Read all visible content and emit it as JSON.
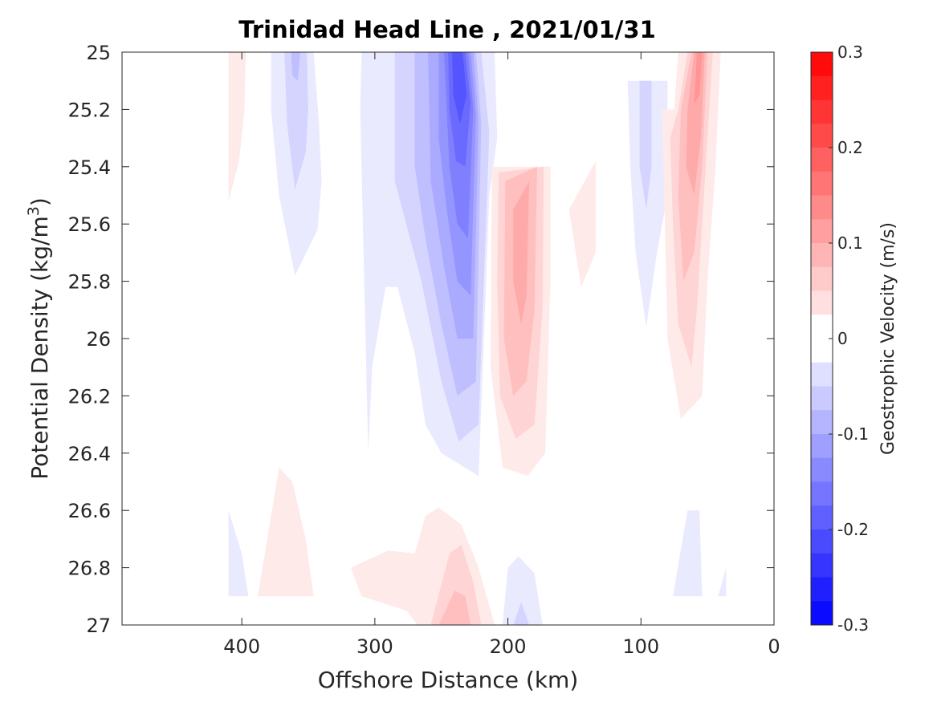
{
  "chart_data": {
    "type": "contour",
    "title": "Trinidad Head Line , 2021/01/31",
    "xlabel": "Offshore Distance (km)",
    "ylabel_main": "Potential Density (kg/m",
    "ylabel_sup": "3",
    "ylabel_end": ")",
    "xlim": [
      490,
      0
    ],
    "ylim": [
      25,
      27
    ],
    "x_reversed": true,
    "y_reversed": true,
    "x_ticks": [
      400,
      300,
      200,
      100,
      0
    ],
    "x_tick_labels": [
      "400",
      "300",
      "200",
      "100",
      "0"
    ],
    "y_ticks": [
      25,
      25.2,
      25.4,
      25.6,
      25.8,
      26,
      26.2,
      26.4,
      26.6,
      26.8,
      27
    ],
    "y_tick_labels": [
      "25",
      "25.2",
      "25.4",
      "25.6",
      "25.8",
      "26",
      "26.2",
      "26.4",
      "26.6",
      "26.8",
      "27"
    ],
    "colorbar": {
      "label": "Geostrophic Velocity (m/s)",
      "range": [
        -0.3,
        0.3
      ],
      "step": 0.025,
      "ticks": [
        0.3,
        0.2,
        0.1,
        0,
        -0.1,
        -0.2,
        -0.3
      ],
      "tick_labels": [
        "0.3",
        "0.2",
        "0.1",
        "0",
        "-0.1",
        "-0.2",
        "-0.3"
      ],
      "colormap": "blue-white-red",
      "low_color": "#0000ff",
      "high_color": "#ff0000"
    },
    "regions": [
      {
        "v": 0.025,
        "pts": [
          [
            410,
            25
          ],
          [
            397,
            25
          ],
          [
            398,
            25.2
          ],
          [
            402,
            25.38
          ],
          [
            410,
            25.52
          ]
        ]
      },
      {
        "v": -0.025,
        "pts": [
          [
            378,
            25
          ],
          [
            346,
            25
          ],
          [
            342,
            25.25
          ],
          [
            340,
            25.45
          ],
          [
            343,
            25.62
          ],
          [
            360,
            25.78
          ],
          [
            372,
            25.5
          ],
          [
            378,
            25.2
          ]
        ]
      },
      {
        "v": -0.05,
        "pts": [
          [
            368,
            25
          ],
          [
            351,
            25
          ],
          [
            350,
            25.2
          ],
          [
            352,
            25.35
          ],
          [
            360,
            25.48
          ],
          [
            366,
            25.25
          ]
        ]
      },
      {
        "v": -0.075,
        "pts": [
          [
            363,
            25
          ],
          [
            356,
            25
          ],
          [
            358,
            25.1
          ],
          [
            362,
            25.08
          ]
        ]
      },
      {
        "v": -0.025,
        "pts": [
          [
            310,
            25
          ],
          [
            210,
            25
          ],
          [
            208,
            25.3
          ],
          [
            214,
            25.5
          ],
          [
            218,
            26.0
          ],
          [
            222,
            26.48
          ],
          [
            250,
            26.4
          ],
          [
            262,
            26.3
          ],
          [
            270,
            26.05
          ],
          [
            283,
            25.82
          ],
          [
            292,
            25.82
          ],
          [
            302,
            26.1
          ],
          [
            305,
            26.4
          ],
          [
            308,
            25.8
          ],
          [
            311,
            25.2
          ]
        ]
      },
      {
        "v": -0.05,
        "pts": [
          [
            285,
            25
          ],
          [
            220,
            25
          ],
          [
            214,
            25.28
          ],
          [
            222,
            26.3
          ],
          [
            237,
            26.36
          ],
          [
            250,
            26.15
          ],
          [
            265,
            25.8
          ],
          [
            285,
            25.45
          ]
        ]
      },
      {
        "v": -0.075,
        "pts": [
          [
            270,
            25
          ],
          [
            224,
            25
          ],
          [
            220,
            25.25
          ],
          [
            224,
            26.15
          ],
          [
            238,
            26.2
          ],
          [
            250,
            25.95
          ],
          [
            262,
            25.65
          ],
          [
            270,
            25.4
          ]
        ]
      },
      {
        "v": -0.1,
        "pts": [
          [
            260,
            25
          ],
          [
            226,
            25
          ],
          [
            222,
            25.24
          ],
          [
            226,
            26.0
          ],
          [
            238,
            26.0
          ],
          [
            248,
            25.75
          ],
          [
            258,
            25.45
          ]
        ]
      },
      {
        "v": -0.125,
        "pts": [
          [
            252,
            25
          ],
          [
            228,
            25
          ],
          [
            224,
            25.22
          ],
          [
            228,
            25.85
          ],
          [
            238,
            25.8
          ],
          [
            246,
            25.55
          ],
          [
            252,
            25.3
          ]
        ]
      },
      {
        "v": -0.15,
        "pts": [
          [
            248,
            25
          ],
          [
            230,
            25
          ],
          [
            226,
            25.2
          ],
          [
            230,
            25.65
          ],
          [
            238,
            25.6
          ],
          [
            244,
            25.4
          ]
        ]
      },
      {
        "v": -0.175,
        "pts": [
          [
            245,
            25
          ],
          [
            232,
            25
          ],
          [
            228,
            25.18
          ],
          [
            232,
            25.4
          ],
          [
            239,
            25.38
          ],
          [
            244,
            25.2
          ]
        ]
      },
      {
        "v": -0.2,
        "pts": [
          [
            242,
            25
          ],
          [
            234,
            25
          ],
          [
            231,
            25.15
          ],
          [
            236,
            25.25
          ],
          [
            241,
            25.15
          ]
        ]
      },
      {
        "v": 0.025,
        "pts": [
          [
            212,
            25.4
          ],
          [
            168,
            25.4
          ],
          [
            168,
            25.8
          ],
          [
            172,
            26.4
          ],
          [
            185,
            26.48
          ],
          [
            204,
            26.45
          ],
          [
            213,
            26.1
          ]
        ]
      },
      {
        "v": 0.05,
        "pts": [
          [
            207,
            25.42
          ],
          [
            173,
            25.4
          ],
          [
            174,
            25.9
          ],
          [
            180,
            26.3
          ],
          [
            194,
            26.35
          ],
          [
            206,
            26.2
          ],
          [
            208,
            25.8
          ]
        ]
      },
      {
        "v": 0.075,
        "pts": [
          [
            202,
            25.45
          ],
          [
            178,
            25.4
          ],
          [
            180,
            25.9
          ],
          [
            186,
            26.15
          ],
          [
            196,
            26.2
          ],
          [
            203,
            26.0
          ]
        ]
      },
      {
        "v": 0.1,
        "pts": [
          [
            196,
            25.55
          ],
          [
            184,
            25.45
          ],
          [
            186,
            25.85
          ],
          [
            190,
            25.95
          ],
          [
            196,
            25.8
          ]
        ]
      },
      {
        "v": 0.025,
        "pts": [
          [
            134,
            25.38
          ],
          [
            154,
            25.55
          ],
          [
            145,
            25.82
          ],
          [
            134,
            25.7
          ]
        ]
      },
      {
        "v": -0.025,
        "pts": [
          [
            110,
            25.1
          ],
          [
            80,
            25.1
          ],
          [
            80,
            25.5
          ],
          [
            88,
            25.7
          ],
          [
            96,
            25.96
          ],
          [
            104,
            25.7
          ],
          [
            108,
            25.4
          ]
        ]
      },
      {
        "v": -0.05,
        "pts": [
          [
            101,
            25.1
          ],
          [
            92,
            25.1
          ],
          [
            92,
            25.4
          ],
          [
            96,
            25.55
          ],
          [
            101,
            25.4
          ]
        ]
      },
      {
        "v": 0.025,
        "pts": [
          [
            72,
            25
          ],
          [
            40,
            25
          ],
          [
            44,
            25.4
          ],
          [
            50,
            25.8
          ],
          [
            54,
            26.2
          ],
          [
            70,
            26.28
          ],
          [
            80,
            26.0
          ],
          [
            82,
            25.6
          ],
          [
            84,
            25.2
          ],
          [
            75,
            25.2
          ]
        ]
      },
      {
        "v": 0.05,
        "pts": [
          [
            65,
            25
          ],
          [
            46,
            25
          ],
          [
            50,
            25.3
          ],
          [
            54,
            25.6
          ],
          [
            58,
            25.9
          ],
          [
            62,
            26.1
          ],
          [
            72,
            25.95
          ],
          [
            76,
            25.6
          ],
          [
            78,
            25.3
          ],
          [
            72,
            25.2
          ]
        ]
      },
      {
        "v": 0.075,
        "pts": [
          [
            62,
            25
          ],
          [
            50,
            25
          ],
          [
            54,
            25.4
          ],
          [
            60,
            25.7
          ],
          [
            68,
            25.8
          ],
          [
            72,
            25.5
          ],
          [
            70,
            25.2
          ]
        ]
      },
      {
        "v": 0.1,
        "pts": [
          [
            60,
            25
          ],
          [
            52,
            25
          ],
          [
            55,
            25.3
          ],
          [
            60,
            25.5
          ],
          [
            66,
            25.4
          ],
          [
            65,
            25.2
          ]
        ]
      },
      {
        "v": 0.125,
        "pts": [
          [
            58,
            25
          ],
          [
            54,
            25
          ],
          [
            56,
            25.15
          ],
          [
            60,
            25.18
          ]
        ]
      },
      {
        "v": -0.025,
        "pts": [
          [
            410,
            26.6
          ],
          [
            410,
            26.9
          ],
          [
            395,
            26.9
          ],
          [
            400,
            26.75
          ]
        ]
      },
      {
        "v": 0.025,
        "pts": [
          [
            372,
            26.45
          ],
          [
            388,
            26.9
          ],
          [
            346,
            26.9
          ],
          [
            352,
            26.7
          ],
          [
            362,
            26.5
          ]
        ]
      },
      {
        "v": 0.025,
        "pts": [
          [
            310,
            26.9
          ],
          [
            318,
            26.8
          ],
          [
            290,
            26.74
          ],
          [
            270,
            26.75
          ],
          [
            262,
            26.62
          ],
          [
            252,
            26.59
          ],
          [
            235,
            26.65
          ],
          [
            222,
            26.8
          ],
          [
            210,
            27
          ],
          [
            268,
            27
          ],
          [
            276,
            26.95
          ]
        ]
      },
      {
        "v": 0.05,
        "pts": [
          [
            258,
            27
          ],
          [
            244,
            26.75
          ],
          [
            235,
            26.72
          ],
          [
            226,
            26.85
          ],
          [
            220,
            27
          ]
        ]
      },
      {
        "v": 0.075,
        "pts": [
          [
            252,
            27
          ],
          [
            240,
            26.88
          ],
          [
            232,
            26.9
          ],
          [
            228,
            27
          ]
        ]
      },
      {
        "v": -0.025,
        "pts": [
          [
            204,
            27
          ],
          [
            200,
            26.8
          ],
          [
            192,
            26.76
          ],
          [
            180,
            26.82
          ],
          [
            174,
            27
          ]
        ]
      },
      {
        "v": -0.05,
        "pts": [
          [
            196,
            27
          ],
          [
            190,
            26.92
          ],
          [
            184,
            27
          ]
        ]
      },
      {
        "v": -0.025,
        "pts": [
          [
            65,
            26.6
          ],
          [
            76,
            26.9
          ],
          [
            54,
            26.9
          ],
          [
            56,
            26.6
          ]
        ]
      },
      {
        "v": -0.025,
        "pts": [
          [
            42,
            26.9
          ],
          [
            36,
            26.8
          ],
          [
            36,
            26.9
          ]
        ]
      }
    ]
  }
}
